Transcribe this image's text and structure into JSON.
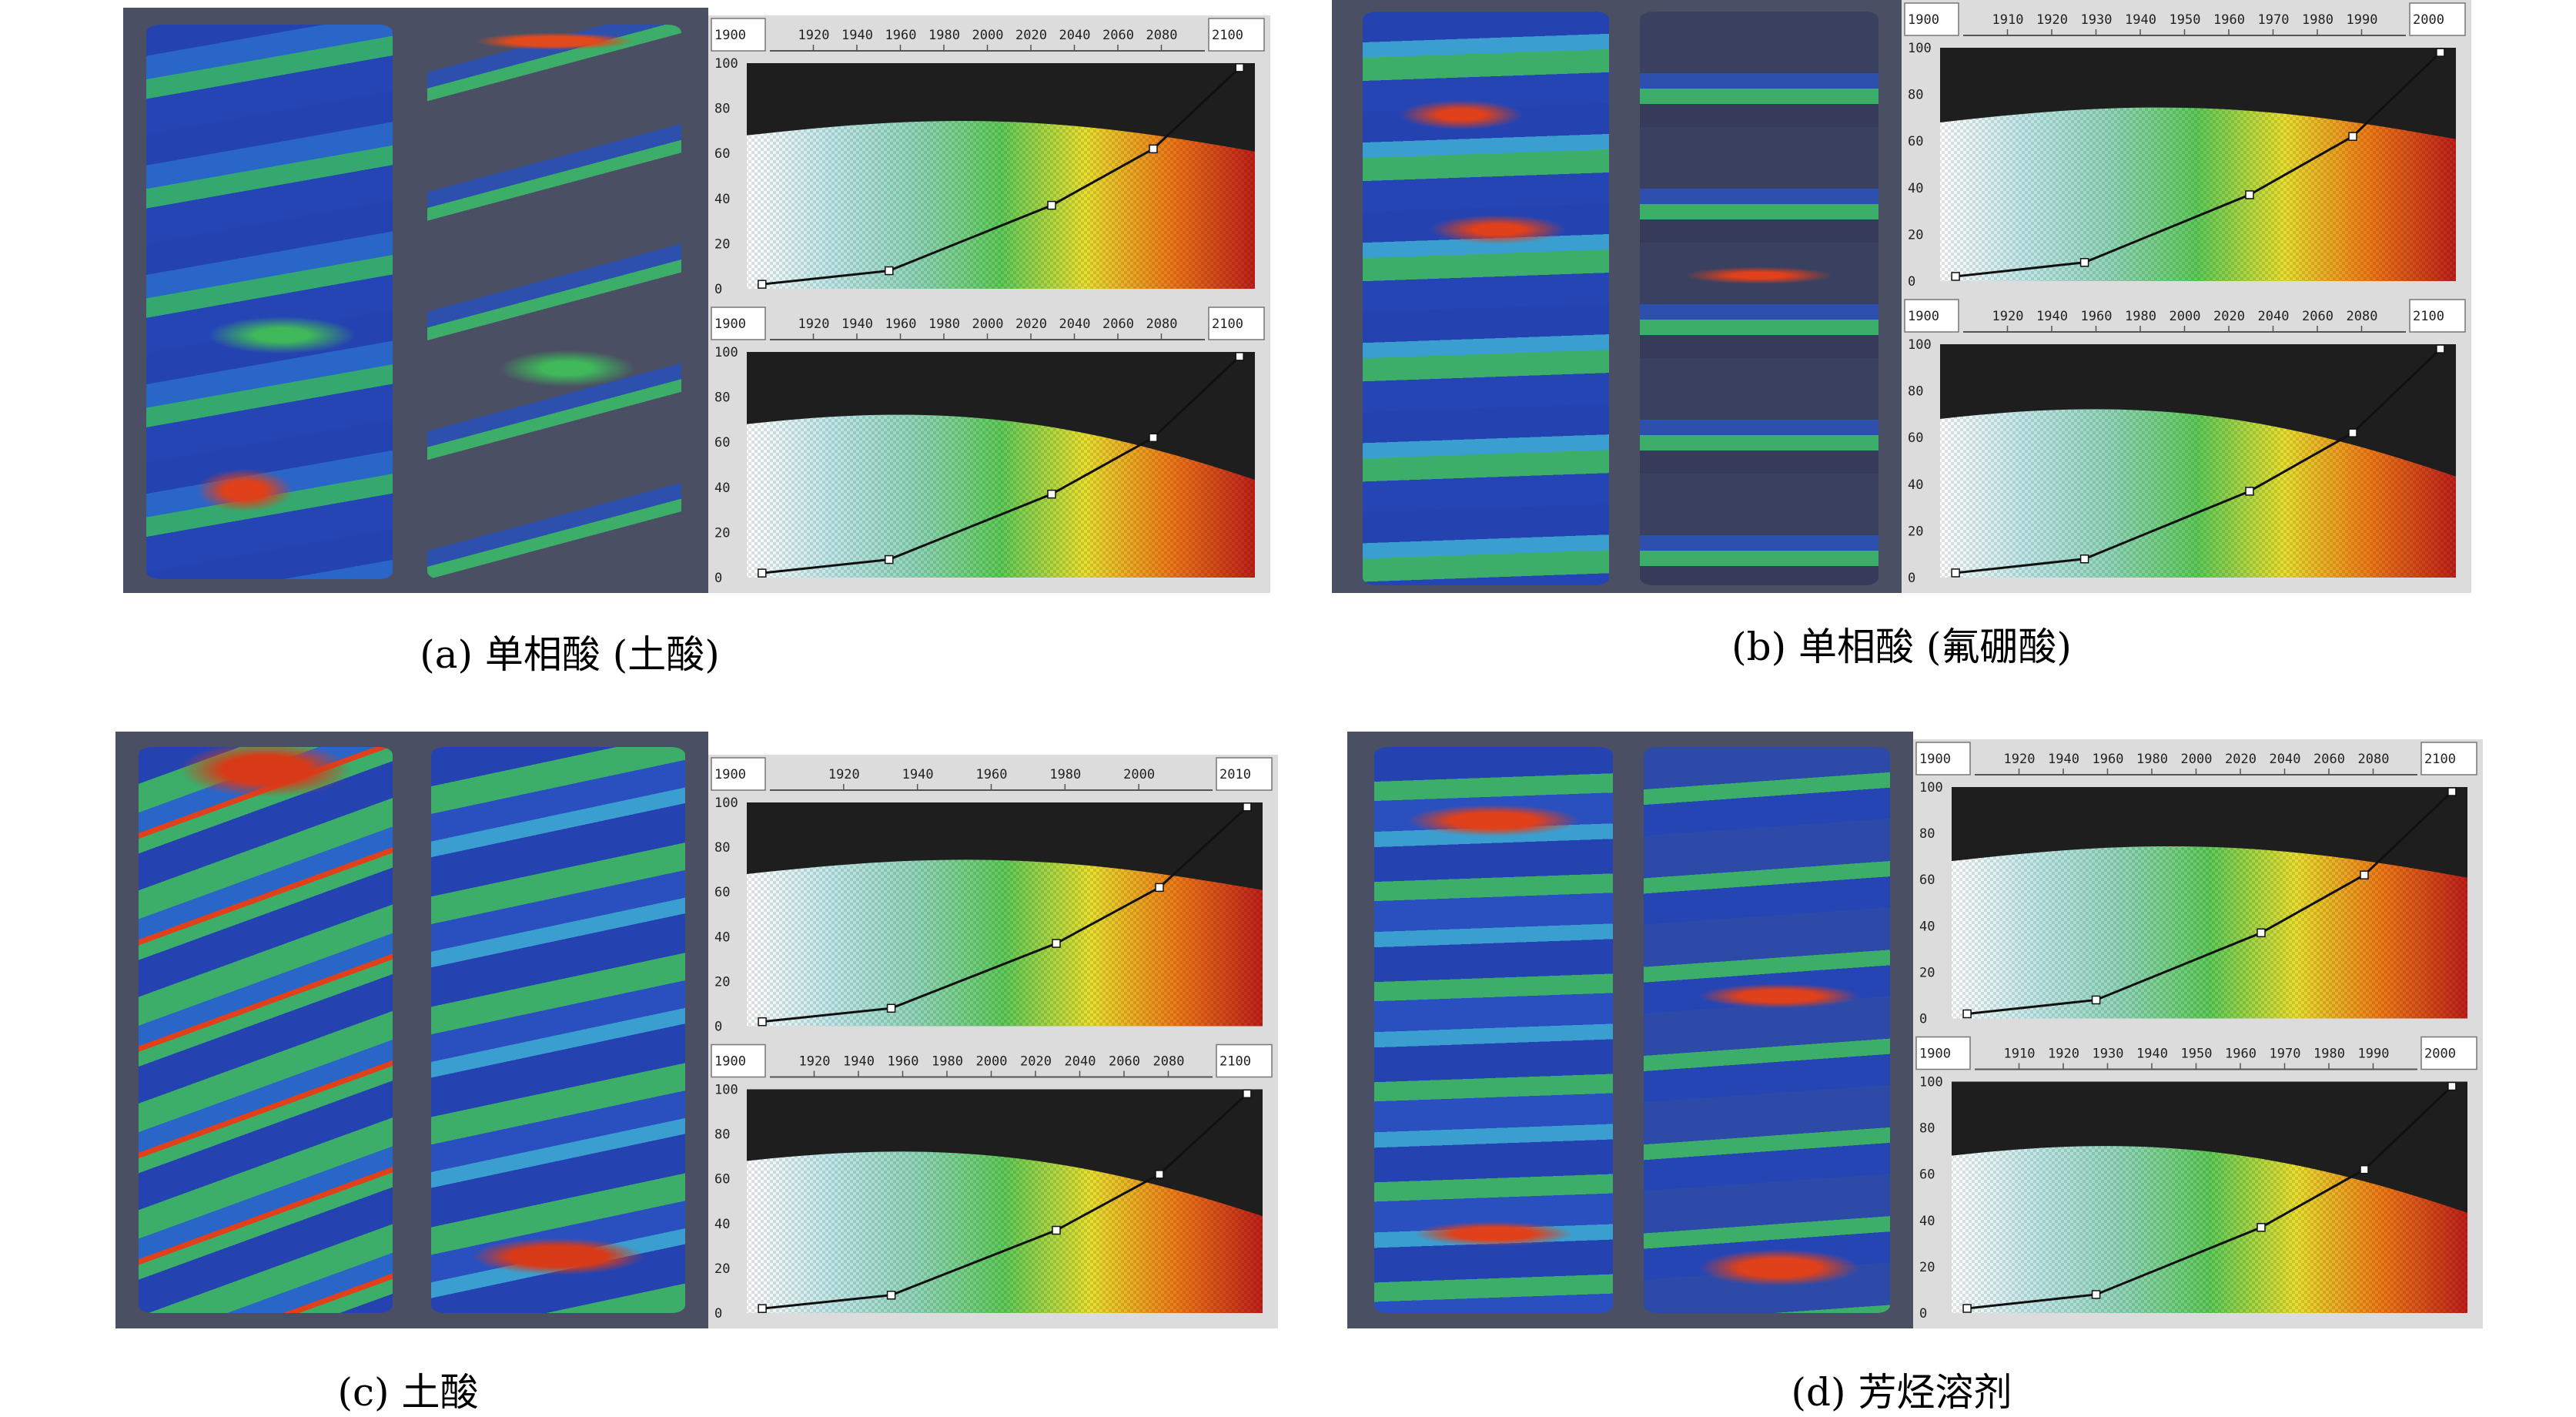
{
  "colors": {
    "background_3d": "#4a4f63",
    "plot_dark": "#1e1e1e",
    "panel_gray": "#dcdcdc",
    "ramp": [
      "#ffffff",
      "#bfe7e8",
      "#8fd6b8",
      "#5fcc5a",
      "#e8e030",
      "#f07a18",
      "#c0201a"
    ]
  },
  "y_ticks": [
    "100",
    "80",
    "60",
    "40",
    "20",
    "0"
  ],
  "panels": [
    {
      "caption": "(a) 单相酸 (土酸)",
      "editors": [
        {
          "range_min": "1900",
          "range_max": "2100",
          "ticks": [
            "1920",
            "1940",
            "1960",
            "1980",
            "2000",
            "2020",
            "2040",
            "2060",
            "2080"
          ]
        },
        {
          "range_min": "1900",
          "range_max": "2100",
          "ticks": [
            "1920",
            "1940",
            "1960",
            "1980",
            "2000",
            "2020",
            "2040",
            "2060",
            "2080"
          ]
        }
      ]
    },
    {
      "caption": "(b) 单相酸 (氟硼酸)",
      "editors": [
        {
          "range_min": "1900",
          "range_max": "2000",
          "ticks": [
            "1910",
            "1920",
            "1930",
            "1940",
            "1950",
            "1960",
            "1970",
            "1980",
            "1990"
          ]
        },
        {
          "range_min": "1900",
          "range_max": "2100",
          "ticks": [
            "1920",
            "1940",
            "1960",
            "1980",
            "2000",
            "2020",
            "2040",
            "2060",
            "2080"
          ]
        }
      ]
    },
    {
      "caption": "(c) 土酸",
      "editors": [
        {
          "range_min": "1900",
          "range_max": "2010",
          "ticks": [
            "1920",
            "1940",
            "1960",
            "1980",
            "2000"
          ]
        },
        {
          "range_min": "1900",
          "range_max": "2100",
          "ticks": [
            "1920",
            "1940",
            "1960",
            "1980",
            "2000",
            "2020",
            "2040",
            "2060",
            "2080"
          ]
        }
      ]
    },
    {
      "caption": "(d) 芳烃溶剂",
      "editors": [
        {
          "range_min": "1900",
          "range_max": "2100",
          "ticks": [
            "1920",
            "1940",
            "1960",
            "1980",
            "2000",
            "2020",
            "2040",
            "2060",
            "2080"
          ]
        },
        {
          "range_min": "1900",
          "range_max": "2000",
          "ticks": [
            "1910",
            "1920",
            "1930",
            "1940",
            "1950",
            "1960",
            "1970",
            "1980",
            "1990"
          ]
        }
      ]
    }
  ]
}
